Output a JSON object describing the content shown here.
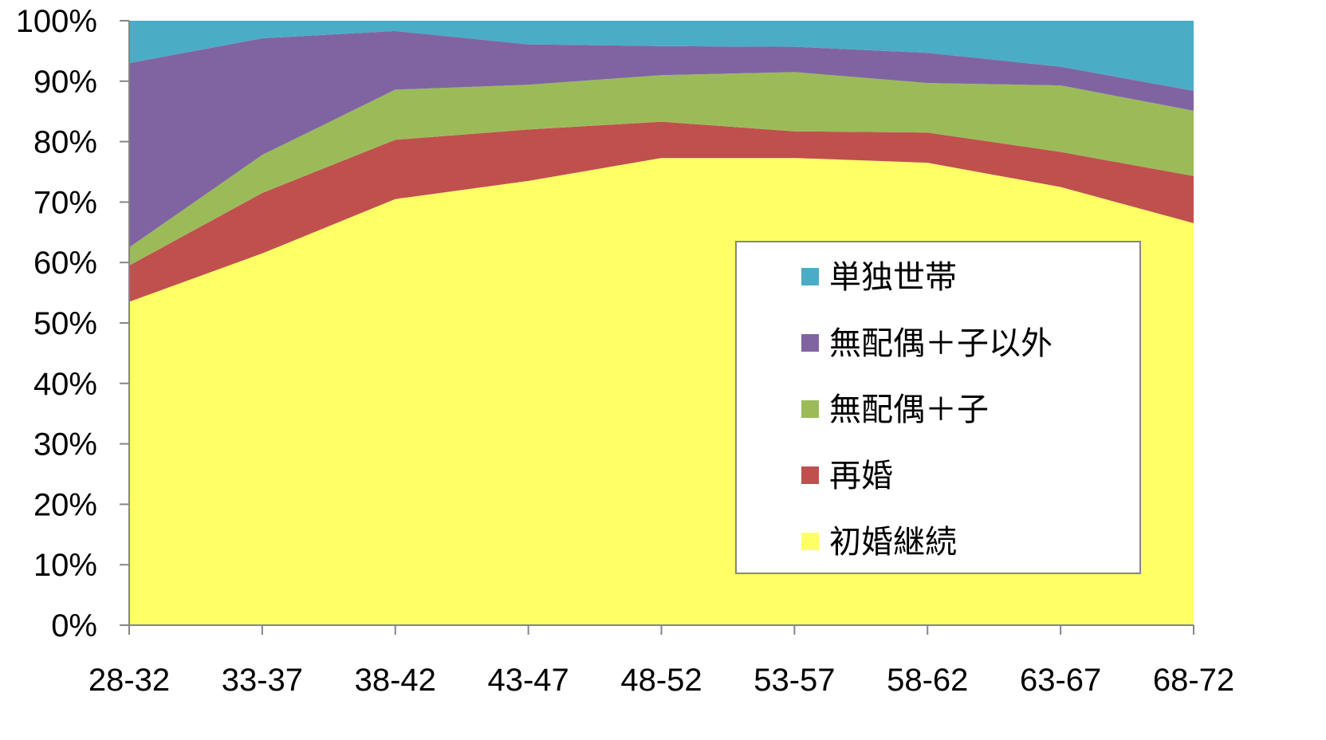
{
  "chart_data": {
    "type": "area",
    "stacked": true,
    "percent": true,
    "x": [
      "28-32",
      "33-37",
      "38-42",
      "43-47",
      "48-52",
      "53-57",
      "58-62",
      "63-67",
      "68-72"
    ],
    "ylim": [
      0,
      100
    ],
    "yticks": [
      "0%",
      "10%",
      "20%",
      "30%",
      "40%",
      "50%",
      "60%",
      "70%",
      "80%",
      "90%",
      "100%"
    ],
    "legend_position": "bottom-right inside plot",
    "grid": false,
    "series": [
      {
        "name": "初婚継続",
        "color": "#ffff66",
        "values": [
          53.5,
          61.5,
          70.5,
          73.5,
          77.3,
          77.3,
          76.5,
          72.5,
          66.5
        ]
      },
      {
        "name": "再婚",
        "color": "#c0504d",
        "values": [
          6.0,
          10.0,
          9.8,
          8.5,
          6.0,
          4.4,
          5.0,
          5.8,
          7.8
        ]
      },
      {
        "name": "無配偶＋子",
        "color": "#9bbb59",
        "values": [
          3.0,
          6.3,
          8.3,
          7.4,
          7.7,
          9.8,
          8.2,
          11.0,
          10.8
        ]
      },
      {
        "name": "無配偶＋子以外",
        "color": "#8064a2",
        "values": [
          30.5,
          19.3,
          9.7,
          6.7,
          4.8,
          4.2,
          5.0,
          3.1,
          3.3
        ]
      },
      {
        "name": "単独世帯",
        "color": "#4bacc6",
        "values": [
          7.0,
          2.9,
          1.7,
          3.9,
          4.2,
          4.3,
          5.3,
          7.6,
          11.6
        ]
      }
    ]
  }
}
